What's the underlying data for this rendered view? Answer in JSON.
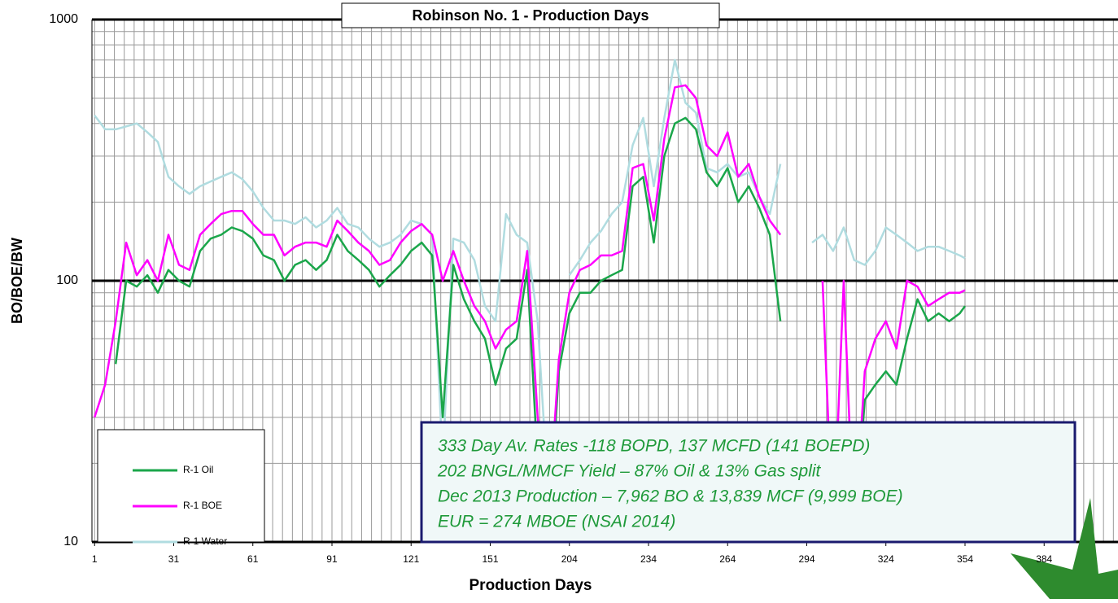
{
  "chart_data": {
    "type": "line",
    "title": "Robinson No. 1 - Production Days",
    "xlabel": "Production Days",
    "ylabel": "BO/BOE/BW",
    "log_y": true,
    "grid": true,
    "legend": "lower left",
    "xlim": [
      0,
      389
    ],
    "ylim": [
      10,
      1000
    ],
    "xticks": [
      1,
      31,
      61,
      91,
      121,
      151,
      {
        "value": 181,
        "label": "204"
      },
      {
        "value": 211,
        "label": "234"
      },
      {
        "value": 241,
        "label": "264"
      },
      {
        "value": 271,
        "label": "294"
      },
      {
        "value": 301,
        "label": "324"
      },
      {
        "value": 331,
        "label": "354"
      },
      {
        "value": 361,
        "label": "384"
      }
    ],
    "yticks": [
      10,
      100,
      1000
    ],
    "x": [
      1,
      5,
      9,
      13,
      17,
      21,
      25,
      29,
      33,
      37,
      41,
      45,
      49,
      53,
      57,
      61,
      65,
      69,
      73,
      77,
      81,
      85,
      89,
      93,
      97,
      101,
      105,
      109,
      113,
      117,
      121,
      125,
      129,
      133,
      137,
      141,
      145,
      149,
      153,
      157,
      161,
      165,
      169,
      173,
      177,
      181,
      185,
      189,
      193,
      197,
      201,
      205,
      209,
      213,
      217,
      221,
      225,
      229,
      233,
      237,
      241,
      245,
      249,
      253,
      257,
      261,
      265,
      269,
      273,
      277,
      281,
      285,
      289,
      293,
      297,
      301,
      305,
      309,
      313,
      317,
      321,
      325,
      329,
      331
    ],
    "series": [
      {
        "name": "R-1 Oil",
        "color": "#1aa64a",
        "values": [
          null,
          null,
          48,
          100,
          95,
          105,
          90,
          110,
          100,
          95,
          130,
          145,
          150,
          160,
          155,
          145,
          125,
          120,
          100,
          115,
          120,
          110,
          120,
          150,
          130,
          120,
          110,
          95,
          105,
          115,
          130,
          140,
          125,
          30,
          115,
          85,
          70,
          60,
          40,
          55,
          60,
          110,
          20,
          10,
          45,
          75,
          90,
          90,
          100,
          105,
          110,
          230,
          250,
          140,
          300,
          400,
          420,
          380,
          260,
          230,
          270,
          200,
          230,
          190,
          150,
          70,
          null,
          null,
          null,
          null,
          null,
          null,
          10,
          35,
          40,
          45,
          40,
          60,
          85,
          70,
          75,
          70,
          75,
          80
        ]
      },
      {
        "name": "R-1 BOE",
        "color": "#ff00ff",
        "values": [
          30,
          40,
          70,
          140,
          105,
          120,
          100,
          150,
          115,
          110,
          150,
          165,
          180,
          185,
          185,
          165,
          150,
          150,
          125,
          135,
          140,
          140,
          135,
          170,
          155,
          140,
          130,
          115,
          120,
          140,
          155,
          165,
          150,
          100,
          130,
          100,
          80,
          70,
          55,
          65,
          70,
          130,
          30,
          12,
          50,
          90,
          110,
          115,
          125,
          125,
          130,
          270,
          280,
          170,
          350,
          550,
          560,
          500,
          330,
          300,
          370,
          250,
          280,
          210,
          170,
          150,
          null,
          null,
          null,
          100,
          10,
          100,
          10,
          45,
          60,
          70,
          55,
          100,
          95,
          80,
          85,
          90,
          90,
          92
        ]
      },
      {
        "name": "R-1 Water",
        "color": "#b0dce0",
        "values": [
          430,
          380,
          380,
          390,
          400,
          370,
          340,
          250,
          230,
          215,
          230,
          240,
          250,
          260,
          245,
          220,
          190,
          170,
          170,
          165,
          175,
          160,
          170,
          190,
          165,
          160,
          145,
          135,
          140,
          150,
          170,
          165,
          150,
          20,
          145,
          140,
          120,
          80,
          70,
          180,
          150,
          140,
          70,
          15,
          null,
          105,
          120,
          140,
          155,
          180,
          200,
          330,
          420,
          230,
          420,
          700,
          480,
          440,
          270,
          260,
          280,
          250,
          260,
          210,
          180,
          280,
          null,
          null,
          140,
          150,
          130,
          160,
          120,
          115,
          130,
          160,
          150,
          140,
          130,
          135,
          135,
          130,
          125,
          122
        ]
      }
    ],
    "annotations": [
      "333 Day Av. Rates -118 BOPD, 137 MCFD (141 BOEPD)",
      "202 BNGL/MMCF Yield – 87% Oil & 13% Gas split",
      "Dec  2013  Production – 7,962 BO  & 13,839 MCF (9,999  BOE)",
      "EUR = 274 MBOE (NSAI 2014)"
    ]
  }
}
